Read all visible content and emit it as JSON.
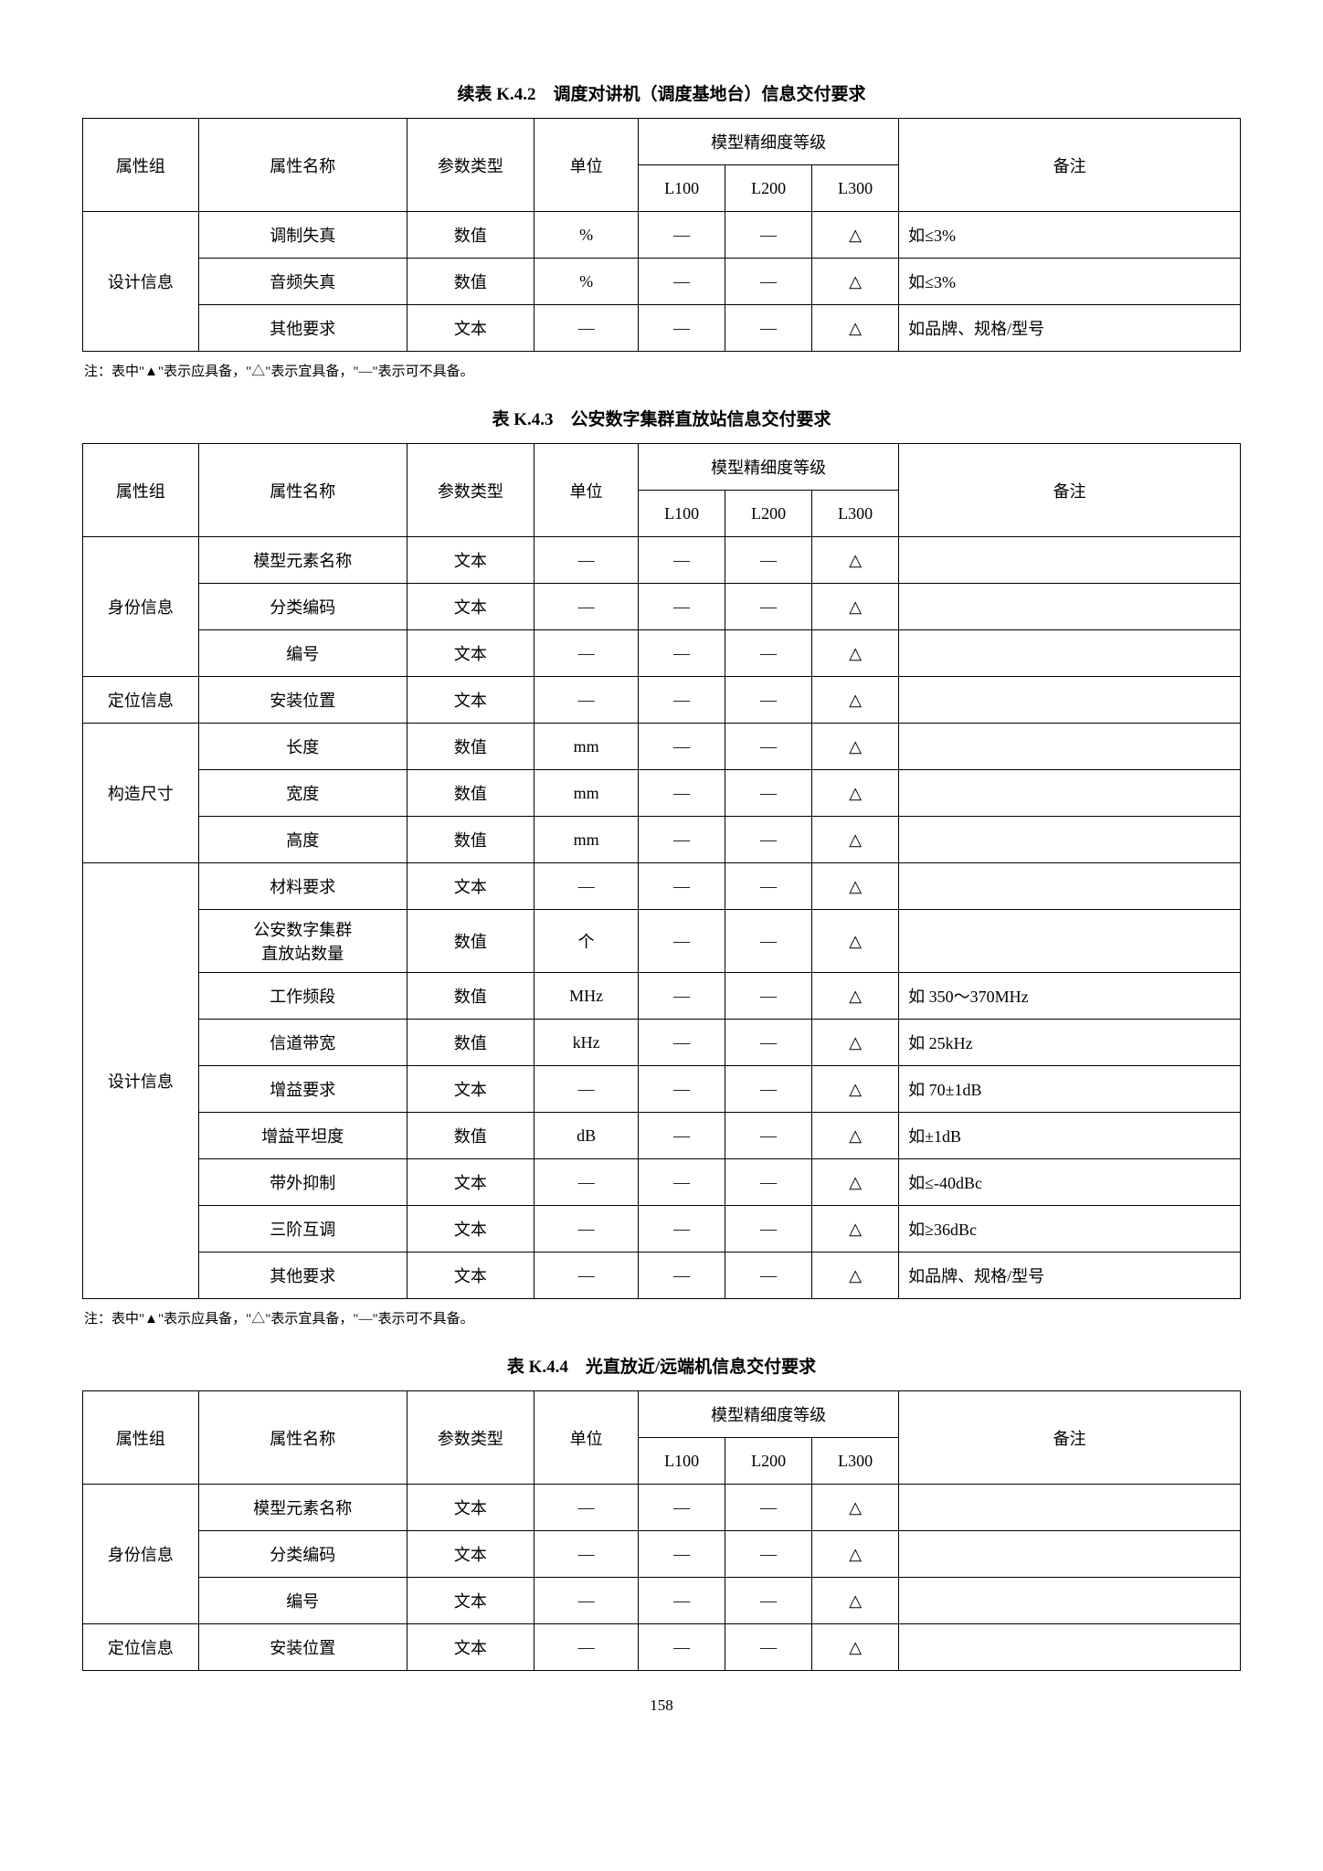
{
  "page_number": "158",
  "note_text": "注：表中\"▲\"表示应具备，\"△\"表示宜具备，\"—\"表示可不具备。",
  "headers": {
    "group": "属性组",
    "name": "属性名称",
    "ptype": "参数类型",
    "unit": "单位",
    "level_group": "模型精细度等级",
    "l100": "L100",
    "l200": "L200",
    "l300": "L300",
    "remark": "备注"
  },
  "symbols": {
    "dash": "—",
    "tri": "△"
  },
  "table1": {
    "title": "续表 K.4.2　调度对讲机（调度基地台）信息交付要求",
    "rows": [
      {
        "group": "设计信息",
        "span": 3,
        "name": "调制失真",
        "ptype": "数值",
        "unit": "%",
        "l100": "—",
        "l200": "—",
        "l300": "△",
        "remark": "如≤3%"
      },
      {
        "name": "音频失真",
        "ptype": "数值",
        "unit": "%",
        "l100": "—",
        "l200": "—",
        "l300": "△",
        "remark": "如≤3%"
      },
      {
        "name": "其他要求",
        "ptype": "文本",
        "unit": "—",
        "l100": "—",
        "l200": "—",
        "l300": "△",
        "remark": "如品牌、规格/型号"
      }
    ]
  },
  "table2": {
    "title": "表 K.4.3　公安数字集群直放站信息交付要求",
    "rows": [
      {
        "group": "身份信息",
        "span": 3,
        "name": "模型元素名称",
        "ptype": "文本",
        "unit": "—",
        "l100": "—",
        "l200": "—",
        "l300": "△",
        "remark": ""
      },
      {
        "name": "分类编码",
        "ptype": "文本",
        "unit": "—",
        "l100": "—",
        "l200": "—",
        "l300": "△",
        "remark": ""
      },
      {
        "name": "编号",
        "ptype": "文本",
        "unit": "—",
        "l100": "—",
        "l200": "—",
        "l300": "△",
        "remark": ""
      },
      {
        "group": "定位信息",
        "span": 1,
        "name": "安装位置",
        "ptype": "文本",
        "unit": "—",
        "l100": "—",
        "l200": "—",
        "l300": "△",
        "remark": ""
      },
      {
        "group": "构造尺寸",
        "span": 3,
        "name": "长度",
        "ptype": "数值",
        "unit": "mm",
        "l100": "—",
        "l200": "—",
        "l300": "△",
        "remark": ""
      },
      {
        "name": "宽度",
        "ptype": "数值",
        "unit": "mm",
        "l100": "—",
        "l200": "—",
        "l300": "△",
        "remark": ""
      },
      {
        "name": "高度",
        "ptype": "数值",
        "unit": "mm",
        "l100": "—",
        "l200": "—",
        "l300": "△",
        "remark": ""
      },
      {
        "group": "设计信息",
        "span": 9,
        "name": "材料要求",
        "ptype": "文本",
        "unit": "—",
        "l100": "—",
        "l200": "—",
        "l300": "△",
        "remark": ""
      },
      {
        "name": "公安数字集群\n直放站数量",
        "ptype": "数值",
        "unit": "个",
        "l100": "—",
        "l200": "—",
        "l300": "△",
        "remark": ""
      },
      {
        "name": "工作频段",
        "ptype": "数值",
        "unit": "MHz",
        "l100": "—",
        "l200": "—",
        "l300": "△",
        "remark": "如 350～370MHz"
      },
      {
        "name": "信道带宽",
        "ptype": "数值",
        "unit": "kHz",
        "l100": "—",
        "l200": "—",
        "l300": "△",
        "remark": "如 25kHz"
      },
      {
        "name": "增益要求",
        "ptype": "文本",
        "unit": "—",
        "l100": "—",
        "l200": "—",
        "l300": "△",
        "remark": "如 70±1dB"
      },
      {
        "name": "增益平坦度",
        "ptype": "数值",
        "unit": "dB",
        "l100": "—",
        "l200": "—",
        "l300": "△",
        "remark": "如±1dB"
      },
      {
        "name": "带外抑制",
        "ptype": "文本",
        "unit": "—",
        "l100": "—",
        "l200": "—",
        "l300": "△",
        "remark": "如≤-40dBc"
      },
      {
        "name": "三阶互调",
        "ptype": "文本",
        "unit": "—",
        "l100": "—",
        "l200": "—",
        "l300": "△",
        "remark": "如≥36dBc"
      },
      {
        "name": "其他要求",
        "ptype": "文本",
        "unit": "—",
        "l100": "—",
        "l200": "—",
        "l300": "△",
        "remark": "如品牌、规格/型号"
      }
    ]
  },
  "table3": {
    "title": "表 K.4.4　光直放近/远端机信息交付要求",
    "rows": [
      {
        "group": "身份信息",
        "span": 3,
        "name": "模型元素名称",
        "ptype": "文本",
        "unit": "—",
        "l100": "—",
        "l200": "—",
        "l300": "△",
        "remark": ""
      },
      {
        "name": "分类编码",
        "ptype": "文本",
        "unit": "—",
        "l100": "—",
        "l200": "—",
        "l300": "△",
        "remark": ""
      },
      {
        "name": "编号",
        "ptype": "文本",
        "unit": "—",
        "l100": "—",
        "l200": "—",
        "l300": "△",
        "remark": ""
      },
      {
        "group": "定位信息",
        "span": 1,
        "name": "安装位置",
        "ptype": "文本",
        "unit": "—",
        "l100": "—",
        "l200": "—",
        "l300": "△",
        "remark": ""
      }
    ]
  }
}
